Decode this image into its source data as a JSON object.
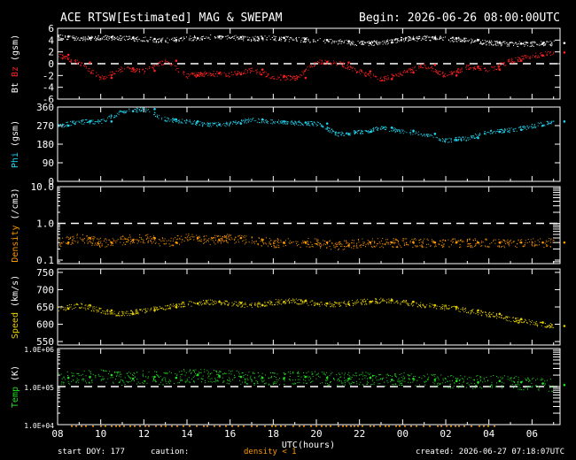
{
  "header": {
    "title": "ACE RTSW[Estimated] MAG & SWEPAM",
    "begin": "Begin: 2026-06-26 08:00:00UTC"
  },
  "footer": {
    "start_doy": "start DOY: 177",
    "caution": "caution:",
    "density_note": "density < 1",
    "created": "created: 2026-06-27 07:18:07UTC"
  },
  "colors": {
    "bt": "#ffffff",
    "bz": "#ff2020",
    "phi": "#22d3ee",
    "density": "#ff9900",
    "speed": "#e6d000",
    "temp": "#22dd22",
    "axes": "#ffffff",
    "background": "#000000"
  },
  "chart_data": [
    {
      "type": "scatter",
      "panel": "bt_bz",
      "ylabel_parts": [
        {
          "text": "Bt",
          "color": "#ffffff"
        },
        {
          "text": " ",
          "color": "#ffffff"
        },
        {
          "text": "Bz",
          "color": "#ff2020"
        },
        {
          "text": " (gsm)",
          "color": "#ffffff"
        }
      ],
      "ylim": [
        -6,
        6
      ],
      "yticks": [
        "6",
        "4",
        "2",
        "0",
        "-2",
        "-4",
        "-6"
      ],
      "ytick_values": [
        6,
        4,
        2,
        0,
        -2,
        -4,
        -6
      ],
      "reference_lines": [
        0
      ],
      "x_hours": [
        0,
        1,
        2,
        3,
        4,
        5,
        6,
        7,
        8,
        9,
        10,
        11,
        12,
        13,
        14,
        15,
        16,
        17,
        18,
        19,
        20,
        21,
        22,
        23
      ],
      "series": [
        {
          "name": "Bt",
          "color": "#ffffff",
          "values": [
            4.6,
            4.3,
            4.5,
            4.4,
            4.2,
            4.0,
            4.3,
            4.6,
            4.5,
            4.3,
            4.4,
            4.2,
            4.0,
            3.8,
            3.5,
            3.6,
            4.2,
            4.4,
            4.3,
            4.0,
            3.6,
            3.4,
            3.4,
            3.5
          ]
        },
        {
          "name": "Bz",
          "color": "#ff2020",
          "values": [
            1.5,
            0.2,
            -2.4,
            -0.8,
            -1.2,
            0.5,
            -2.0,
            -1.6,
            -1.8,
            -1.0,
            -2.2,
            -2.4,
            0.3,
            0.2,
            -1.3,
            -2.6,
            -1.5,
            -0.2,
            -2.0,
            -0.5,
            -1.0,
            0.5,
            1.4,
            1.9
          ]
        }
      ]
    },
    {
      "type": "scatter",
      "panel": "phi",
      "ylabel_parts": [
        {
          "text": "Phi",
          "color": "#22d3ee"
        },
        {
          "text": " (gsm)",
          "color": "#ffffff"
        }
      ],
      "ylim": [
        0,
        360
      ],
      "yticks": [
        "360",
        "270",
        "180",
        "90",
        "0"
      ],
      "ytick_values": [
        360,
        270,
        180,
        90,
        0
      ],
      "x_hours": [
        0,
        1,
        2,
        3,
        4,
        5,
        6,
        7,
        8,
        9,
        10,
        11,
        12,
        13,
        14,
        15,
        16,
        17,
        18,
        19,
        20,
        21,
        22,
        23
      ],
      "series": [
        {
          "name": "Phi",
          "color": "#22d3ee",
          "values": [
            270,
            290,
            290,
            340,
            350,
            300,
            290,
            275,
            280,
            300,
            290,
            285,
            280,
            230,
            240,
            260,
            245,
            230,
            200,
            210,
            240,
            250,
            270,
            290
          ]
        }
      ]
    },
    {
      "type": "scatter",
      "panel": "density",
      "scale": "log",
      "ylabel_parts": [
        {
          "text": "Density",
          "color": "#ff9900"
        },
        {
          "text": " (/cm3)",
          "color": "#ffffff"
        }
      ],
      "ylim": [
        0.08,
        10
      ],
      "yticks": [
        "10.0",
        "1.0",
        "0.1"
      ],
      "ytick_values": [
        10,
        1,
        0.1
      ],
      "reference_lines": [
        1.0
      ],
      "x_hours": [
        0,
        1,
        2,
        3,
        4,
        5,
        6,
        7,
        8,
        9,
        10,
        11,
        12,
        13,
        14,
        15,
        16,
        17,
        18,
        19,
        20,
        21,
        22,
        23
      ],
      "series": [
        {
          "name": "Density",
          "color": "#ff9900",
          "values": [
            0.3,
            0.4,
            0.3,
            0.35,
            0.4,
            0.3,
            0.4,
            0.35,
            0.4,
            0.35,
            0.3,
            0.3,
            0.3,
            0.25,
            0.3,
            0.3,
            0.3,
            0.3,
            0.3,
            0.3,
            0.3,
            0.3,
            0.3,
            0.3
          ]
        }
      ]
    },
    {
      "type": "scatter",
      "panel": "speed",
      "ylabel_parts": [
        {
          "text": "Speed",
          "color": "#e6d000"
        },
        {
          "text": " (km/s)",
          "color": "#ffffff"
        }
      ],
      "ylim": [
        540,
        760
      ],
      "yticks": [
        "750",
        "700",
        "650",
        "600",
        "550"
      ],
      "ytick_values": [
        750,
        700,
        650,
        600,
        550
      ],
      "x_hours": [
        0,
        1,
        2,
        3,
        4,
        5,
        6,
        7,
        8,
        9,
        10,
        11,
        12,
        13,
        14,
        15,
        16,
        17,
        18,
        19,
        20,
        21,
        22,
        23
      ],
      "series": [
        {
          "name": "Speed",
          "color": "#e6d000",
          "values": [
            645,
            655,
            640,
            630,
            640,
            650,
            660,
            665,
            662,
            655,
            665,
            668,
            660,
            658,
            665,
            670,
            665,
            655,
            650,
            640,
            630,
            615,
            605,
            595
          ]
        }
      ]
    },
    {
      "type": "scatter",
      "panel": "temp",
      "scale": "log",
      "ylabel_parts": [
        {
          "text": "Temp",
          "color": "#22dd22"
        },
        {
          "text": " (K)",
          "color": "#ffffff"
        }
      ],
      "ylim": [
        10000,
        1000000
      ],
      "yticks": [
        "1.0E+06",
        "1.0E+05",
        "1.0E+04"
      ],
      "ytick_values": [
        1000000,
        100000,
        10000
      ],
      "reference_lines": [
        100000
      ],
      "x_hours": [
        0,
        1,
        2,
        3,
        4,
        5,
        6,
        7,
        8,
        9,
        10,
        11,
        12,
        13,
        14,
        15,
        16,
        17,
        18,
        19,
        20,
        21,
        22,
        23
      ],
      "series": [
        {
          "name": "Temp",
          "color": "#22dd22",
          "values": [
            170000,
            180000,
            200000,
            160000,
            180000,
            170000,
            200000,
            190000,
            180000,
            170000,
            160000,
            180000,
            170000,
            160000,
            170000,
            150000,
            160000,
            150000,
            140000,
            130000,
            140000,
            130000,
            120000,
            110000
          ]
        }
      ]
    }
  ],
  "x_axis": {
    "label": "UTC(hours)",
    "range_hours": [
      0,
      23.3
    ],
    "ticks": [
      "08",
      "10",
      "12",
      "14",
      "16",
      "18",
      "20",
      "22",
      "00",
      "02",
      "04",
      "06"
    ],
    "tick_offsets_hours": [
      0,
      2,
      4,
      6,
      8,
      10,
      12,
      14,
      16,
      18,
      20,
      22
    ]
  }
}
